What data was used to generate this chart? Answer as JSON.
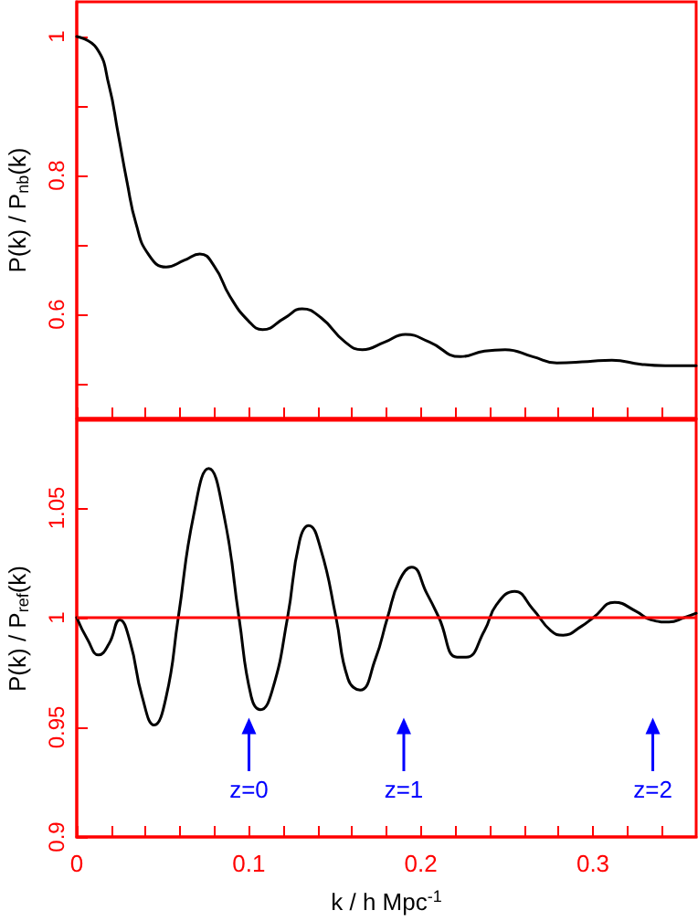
{
  "chart_data": [
    {
      "type": "line",
      "ylabel": "P(k) / P$_{nb}$(k)",
      "x": [
        0,
        0.0116,
        0.0187,
        0.024,
        0.0292,
        0.0345,
        0.0415,
        0.052,
        0.0627,
        0.0715,
        0.08,
        0.089,
        0.0996,
        0.108,
        0.121,
        0.131,
        0.142,
        0.156,
        0.166,
        0.179,
        0.191,
        0.205,
        0.223,
        0.237,
        0.249,
        0.265,
        0.279,
        0.297,
        0.311,
        0.328,
        0.342,
        0.36
      ],
      "series": [
        {
          "color": "#000000",
          "values": [
            1,
            0.983,
            0.93,
            0.861,
            0.791,
            0.73,
            0.687,
            0.668,
            0.678,
            0.687,
            0.669,
            0.626,
            0.591,
            0.578,
            0.595,
            0.608,
            0.595,
            0.56,
            0.549,
            0.56,
            0.571,
            0.56,
            0.539,
            0.547,
            0.549,
            0.539,
            0.53,
            0.532,
            0.534,
            0.528,
            0.526,
            0.526
          ]
        }
      ],
      "xlim": [
        0,
        0.36
      ],
      "ylim": [
        0.45,
        1.05
      ],
      "xticks": [
        0,
        {
          "value": 0.02,
          "label": null
        },
        {
          "value": 0.04,
          "label": null
        },
        {
          "value": 0.06,
          "label": null
        },
        {
          "value": 0.08,
          "label": null
        },
        0.1,
        {
          "value": 0.12,
          "label": null
        },
        {
          "value": 0.14,
          "label": null
        },
        {
          "value": 0.16,
          "label": null
        },
        {
          "value": 0.18,
          "label": null
        },
        0.2,
        {
          "value": 0.22,
          "label": null
        },
        {
          "value": 0.24,
          "label": null
        },
        {
          "value": 0.26,
          "label": null
        },
        {
          "value": 0.28,
          "label": null
        },
        0.3,
        {
          "value": 0.32,
          "label": null
        },
        {
          "value": 0.34,
          "label": null
        }
      ],
      "yticks": [
        {
          "value": 0.5,
          "label": null
        },
        0.6,
        {
          "value": 0.7,
          "label": null
        },
        0.8,
        {
          "value": 0.9,
          "label": null
        },
        1
      ],
      "tick_labels": "y",
      "grid": false,
      "marker": "none",
      "line_style": "solid"
    },
    {
      "type": "line",
      "xlabel": "k / h Mpc$^{-1}$",
      "ylabel": "P(k) / P$_{ref}$(k)",
      "x": [
        0,
        0.0063,
        0.0127,
        0.0187,
        0.025,
        0.031,
        0.038,
        0.045,
        0.052,
        0.059,
        0.068,
        0.0767,
        0.0855,
        0.0943,
        0.1014,
        0.1067,
        0.1137,
        0.1225,
        0.1295,
        0.1348,
        0.1419,
        0.1507,
        0.1577,
        0.1647,
        0.1735,
        0.1806,
        0.1876,
        0.1947,
        0.2035,
        0.2105,
        0.221,
        0.2263,
        0.2369,
        0.244,
        0.2545,
        0.265,
        0.2756,
        0.2827,
        0.2932,
        0.3002,
        0.3126,
        0.3249,
        0.3337,
        0.3442,
        0.353,
        0.36
      ],
      "series": [
        {
          "color": "#000000",
          "values": [
            1,
            0.99,
            0.983,
            0.988,
            0.999,
            0.989,
            0.964,
            0.951,
            0.964,
            1,
            1.047,
            1.068,
            1.047,
            1,
            0.964,
            0.958,
            0.967,
            1,
            1.035,
            1.042,
            1.031,
            1,
            0.972,
            0.967,
            0.981,
            1,
            1.017,
            1.023,
            1.011,
            1,
            0.982,
            0.982,
            0.994,
            1.006,
            1.012,
            1.004,
            0.994,
            0.992,
            0.996,
            1,
            1.007,
            1.003,
            0.999,
            0.998,
            1,
            1.002
          ]
        }
      ],
      "xlim": [
        0,
        0.36
      ],
      "ylim": [
        0.9,
        1.09
      ],
      "xticks": [
        0,
        {
          "value": 0.02,
          "label": null
        },
        {
          "value": 0.04,
          "label": null
        },
        {
          "value": 0.06,
          "label": null
        },
        {
          "value": 0.08,
          "label": null
        },
        0.1,
        {
          "value": 0.12,
          "label": null
        },
        {
          "value": 0.14,
          "label": null
        },
        {
          "value": 0.16,
          "label": null
        },
        {
          "value": 0.18,
          "label": null
        },
        0.2,
        {
          "value": 0.22,
          "label": null
        },
        {
          "value": 0.24,
          "label": null
        },
        {
          "value": 0.26,
          "label": null
        },
        {
          "value": 0.28,
          "label": null
        },
        0.3,
        {
          "value": 0.32,
          "label": null
        },
        {
          "value": 0.34,
          "label": null
        }
      ],
      "yticks": [
        0.9,
        0.95,
        1,
        1.05
      ],
      "ref_lines": [
        {
          "axis": "y",
          "value": 1,
          "color": "#ff0000"
        }
      ],
      "annotations": [
        "z=0",
        "z=1",
        "z=2"
      ],
      "grid": false,
      "marker": "none",
      "line_style": "solid"
    }
  ]
}
